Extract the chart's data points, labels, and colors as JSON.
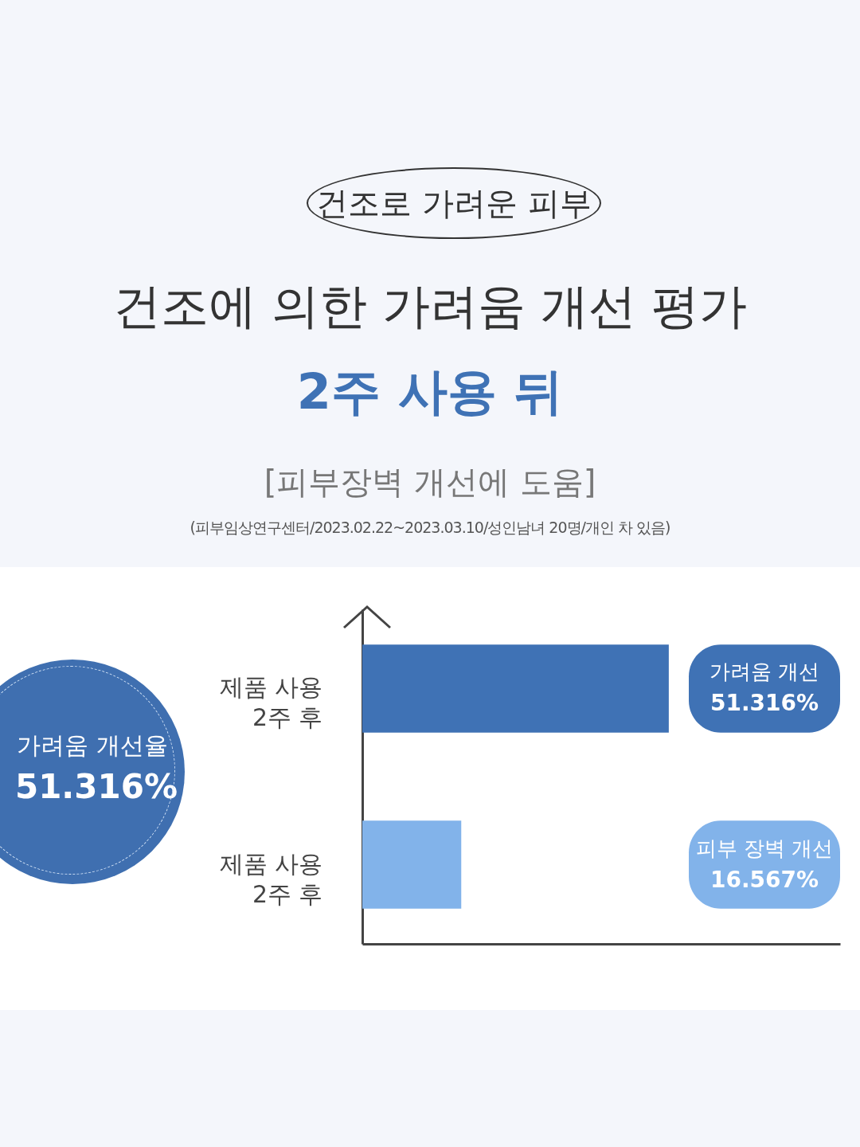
{
  "chart_data": {
    "type": "bar",
    "orientation": "horizontal",
    "title": "건조에 의한 가려움 개선 평가",
    "subtitle": "2주 사용 뒤",
    "annotations": [
      "건조로 가려운 피부",
      "[피부장벽 개선에 도움]",
      "(피부임상연구센터/2023.02.22~2023.03.10/성인남녀 20명/개인 차 있음)",
      "가려움 개선율",
      "51.316%",
      "가려움 개선",
      "피부 장벽 개선"
    ],
    "categories": [
      "제품 사용\n2주 후",
      "제품 사용\n2주 후"
    ],
    "values": [
      51.316,
      16.567
    ],
    "colors": [
      "#3f72b5",
      "#82b3ea"
    ],
    "value_labels": [
      "51.316%",
      "16.567%"
    ],
    "xlim": [
      0,
      80
    ],
    "tick_labels": "y",
    "grid": false,
    "legend": false
  }
}
